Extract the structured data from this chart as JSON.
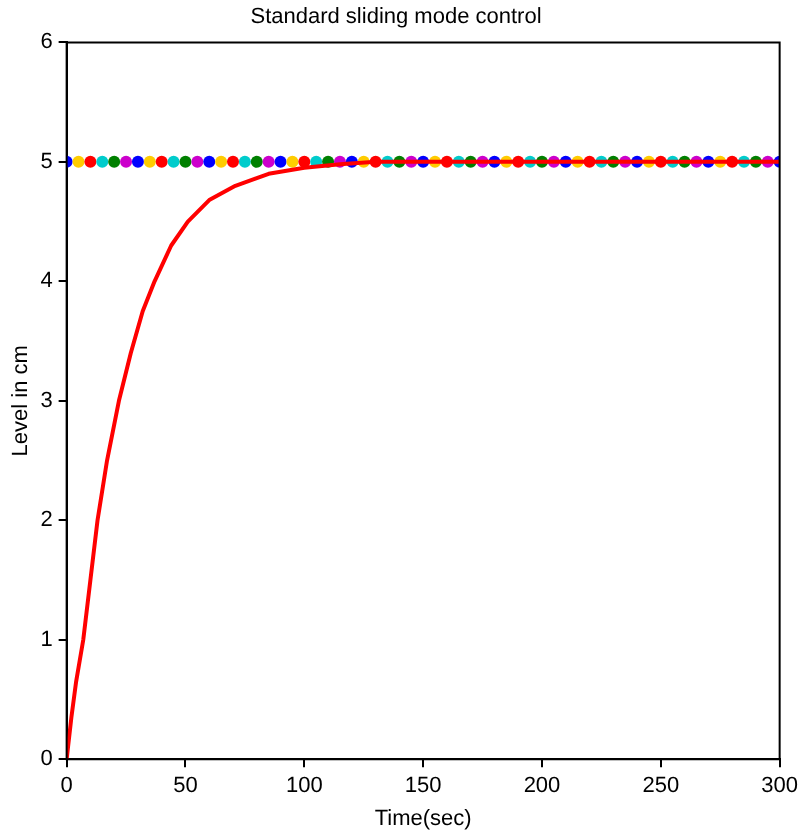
{
  "chart_data": {
    "type": "line",
    "title": "Standard sliding mode control",
    "xlabel": "Time(sec)",
    "ylabel": "Level in cm",
    "xlim": [
      0,
      300
    ],
    "xticks": [
      0,
      50,
      100,
      150,
      200,
      250,
      300
    ],
    "ylim": [
      0,
      6
    ],
    "yticks": [
      0,
      1,
      2,
      3,
      4,
      5,
      6
    ],
    "grid": false,
    "legend": false,
    "series": [
      {
        "type": "scatter",
        "x": [
          0,
          5,
          10,
          15,
          20,
          25,
          30,
          35,
          40,
          45,
          50,
          55,
          60,
          65,
          70,
          75,
          80,
          85,
          90,
          95,
          100,
          105,
          110,
          115,
          120,
          125,
          130,
          135,
          140,
          145,
          150,
          155,
          160,
          165,
          170,
          175,
          180,
          185,
          190,
          195,
          200,
          205,
          210,
          215,
          220,
          225,
          230,
          235,
          240,
          245,
          250,
          255,
          260,
          265,
          270,
          275,
          280,
          285,
          290,
          295,
          300
        ],
        "values": [
          5,
          5,
          5,
          5,
          5,
          5,
          5,
          5,
          5,
          5,
          5,
          5,
          5,
          5,
          5,
          5,
          5,
          5,
          5,
          5,
          5,
          5,
          5,
          5,
          5,
          5,
          5,
          5,
          5,
          5,
          5,
          5,
          5,
          5,
          5,
          5,
          5,
          5,
          5,
          5,
          5,
          5,
          5,
          5,
          5,
          5,
          5,
          5,
          5,
          5,
          5,
          5,
          5,
          5,
          5,
          5,
          5,
          5,
          5,
          5,
          5
        ],
        "colors": [
          "#0000ff",
          "#ffcc00",
          "#ff0000",
          "#00cccc",
          "#008000",
          "#cc00cc",
          "#0000ff",
          "#ffcc00",
          "#ff0000",
          "#00cccc",
          "#008000",
          "#cc00cc",
          "#0000ff",
          "#ffcc00",
          "#ff0000",
          "#00cccc",
          "#008000",
          "#cc00cc",
          "#0000ff",
          "#ffcc00",
          "#ff0000",
          "#00cccc",
          "#008000",
          "#cc00cc",
          "#0000ff",
          "#ffcc00",
          "#ff0000",
          "#00cccc",
          "#008000",
          "#cc00cc",
          "#0000ff",
          "#ffcc00",
          "#ff0000",
          "#00cccc",
          "#008000",
          "#cc00cc",
          "#0000ff",
          "#ffcc00",
          "#ff0000",
          "#00cccc",
          "#008000",
          "#cc00cc",
          "#0000ff",
          "#ffcc00",
          "#ff0000",
          "#00cccc",
          "#008000",
          "#cc00cc",
          "#0000ff",
          "#ffcc00",
          "#ff0000",
          "#00cccc",
          "#008000",
          "#cc00cc",
          "#0000ff",
          "#ffcc00",
          "#ff0000",
          "#00cccc",
          "#008000",
          "#cc00cc",
          "#0000ff"
        ]
      },
      {
        "color": "#ff0000",
        "x": [
          0,
          2,
          4,
          7,
          10,
          13,
          17,
          22,
          27,
          32,
          37,
          44,
          51,
          60,
          71,
          85,
          100,
          115,
          130,
          160,
          200,
          250,
          300
        ],
        "values": [
          0,
          0.35,
          0.65,
          1.0,
          1.5,
          2.0,
          2.5,
          3.0,
          3.4,
          3.75,
          4.0,
          4.3,
          4.5,
          4.68,
          4.8,
          4.9,
          4.95,
          4.98,
          5,
          5,
          5,
          5,
          5
        ]
      }
    ]
  }
}
